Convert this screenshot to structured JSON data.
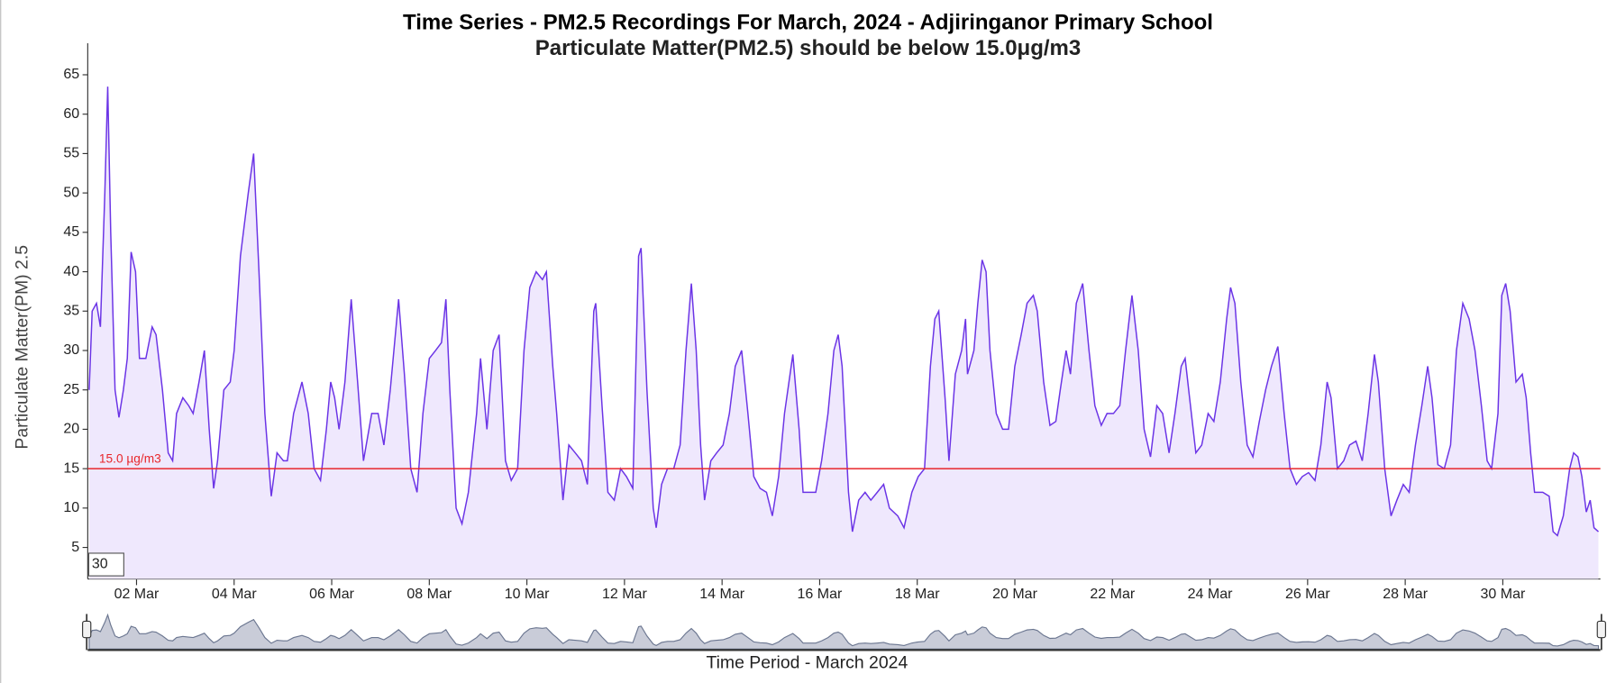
{
  "chart_data": {
    "type": "area",
    "title": "Time Series - PM2.5 Recordings For March, 2024 - Adjiringanor Primary School",
    "subtitle": "Particulate Matter(PM2.5) should be below 15.0μg/m3",
    "y_label": "Particulate Matter(PM) 2.5",
    "x_label": "Time Period - March 2024",
    "range_input": "30",
    "threshold": {
      "value": 15,
      "label": "15.0 µg/m3"
    },
    "threshold_color": "#e8262b",
    "xlim": [
      1,
      32
    ],
    "xticks": [
      {
        "value": 2,
        "label": "02 Mar"
      },
      {
        "value": 4,
        "label": "04 Mar"
      },
      {
        "value": 6,
        "label": "06 Mar"
      },
      {
        "value": 8,
        "label": "08 Mar"
      },
      {
        "value": 10,
        "label": "10 Mar"
      },
      {
        "value": 12,
        "label": "12 Mar"
      },
      {
        "value": 14,
        "label": "14 Mar"
      },
      {
        "value": 16,
        "label": "16 Mar"
      },
      {
        "value": 18,
        "label": "18 Mar"
      },
      {
        "value": 20,
        "label": "20 Mar"
      },
      {
        "value": 22,
        "label": "22 Mar"
      },
      {
        "value": 24,
        "label": "24 Mar"
      },
      {
        "value": 26,
        "label": "26 Mar"
      },
      {
        "value": 28,
        "label": "28 Mar"
      },
      {
        "value": 30,
        "label": "30 Mar"
      }
    ],
    "ylim": [
      1,
      69
    ],
    "yticks": [
      5,
      10,
      15,
      20,
      25,
      30,
      35,
      40,
      45,
      50,
      55,
      60,
      65
    ],
    "grid": false,
    "series": [
      {
        "name": "PM2.5",
        "color": "#6b34e6",
        "fill": "#efe8fd",
        "x": [
          1.03,
          1.09,
          1.18,
          1.26,
          1.35,
          1.41,
          1.47,
          1.56,
          1.64,
          1.73,
          1.81,
          1.89,
          1.98,
          2.06,
          2.19,
          2.32,
          2.4,
          2.53,
          2.65,
          2.74,
          2.82,
          2.95,
          3.07,
          3.16,
          3.28,
          3.39,
          3.49,
          3.58,
          3.66,
          3.79,
          3.92,
          4.0,
          4.13,
          4.29,
          4.4,
          4.51,
          4.63,
          4.76,
          4.88,
          5.01,
          5.09,
          5.22,
          5.39,
          5.52,
          5.64,
          5.77,
          5.89,
          5.98,
          6.06,
          6.15,
          6.27,
          6.4,
          6.53,
          6.65,
          6.82,
          6.95,
          7.07,
          7.2,
          7.37,
          7.49,
          7.62,
          7.75,
          7.87,
          8.0,
          8.13,
          8.25,
          8.34,
          8.42,
          8.55,
          8.67,
          8.8,
          8.97,
          9.05,
          9.18,
          9.31,
          9.43,
          9.56,
          9.68,
          9.81,
          9.94,
          10.06,
          10.19,
          10.32,
          10.4,
          10.53,
          10.61,
          10.74,
          10.86,
          10.99,
          11.12,
          11.24,
          11.37,
          11.41,
          11.54,
          11.66,
          11.79,
          11.92,
          12.04,
          12.17,
          12.29,
          12.34,
          12.46,
          12.59,
          12.65,
          12.76,
          12.88,
          13.01,
          13.14,
          13.26,
          13.37,
          13.47,
          13.56,
          13.64,
          13.77,
          13.89,
          14.02,
          14.15,
          14.27,
          14.4,
          14.53,
          14.65,
          14.78,
          14.91,
          15.03,
          15.16,
          15.28,
          15.45,
          15.58,
          15.66,
          15.79,
          15.92,
          16.04,
          16.17,
          16.29,
          16.38,
          16.46,
          16.59,
          16.67,
          16.8,
          16.93,
          17.05,
          17.18,
          17.31,
          17.43,
          17.6,
          17.73,
          17.89,
          18.02,
          18.15,
          18.27,
          18.36,
          18.44,
          18.57,
          18.65,
          18.78,
          18.91,
          18.99,
          19.03,
          19.16,
          19.24,
          19.33,
          19.41,
          19.49,
          19.62,
          19.75,
          19.87,
          20.0,
          20.13,
          20.25,
          20.38,
          20.46,
          20.59,
          20.72,
          20.84,
          20.93,
          21.05,
          21.14,
          21.26,
          21.39,
          21.52,
          21.64,
          21.77,
          21.89,
          22.02,
          22.15,
          22.27,
          22.4,
          22.53,
          22.65,
          22.78,
          22.91,
          23.03,
          23.16,
          23.28,
          23.41,
          23.49,
          23.58,
          23.71,
          23.83,
          23.96,
          24.08,
          24.21,
          24.34,
          24.42,
          24.51,
          24.63,
          24.76,
          24.88,
          25.01,
          25.14,
          25.26,
          25.39,
          25.52,
          25.64,
          25.77,
          25.89,
          26.02,
          26.15,
          26.27,
          26.4,
          26.48,
          26.61,
          26.74,
          26.86,
          26.99,
          27.12,
          27.24,
          27.37,
          27.45,
          27.58,
          27.71,
          27.83,
          27.96,
          28.08,
          28.21,
          28.34,
          28.46,
          28.55,
          28.67,
          28.8,
          28.93,
          29.05,
          29.18,
          29.31,
          29.43,
          29.56,
          29.68,
          29.77,
          29.9,
          29.98,
          30.06,
          30.15,
          30.27,
          30.4,
          30.48,
          30.57,
          30.65,
          30.82,
          30.95,
          31.03,
          31.12,
          31.24,
          31.37,
          31.45,
          31.54,
          31.62,
          31.71,
          31.79,
          31.87,
          31.96
        ],
        "values": [
          25,
          35,
          36,
          33,
          50,
          63.5,
          45,
          25,
          21.5,
          25,
          29,
          42.5,
          40,
          29,
          29,
          33,
          32,
          25,
          17,
          16,
          22,
          24,
          23,
          22,
          26,
          30,
          20,
          12.5,
          16,
          25,
          26,
          30,
          42,
          50,
          55,
          40,
          22,
          11.5,
          17,
          16,
          16,
          22,
          26,
          22,
          15,
          13.5,
          20,
          26,
          24,
          20,
          26,
          36.5,
          26,
          16,
          22,
          22,
          18,
          25,
          36.5,
          27,
          15,
          12,
          22,
          29,
          30,
          31,
          36.5,
          25,
          10,
          8,
          12,
          22,
          29,
          20,
          30,
          32,
          16,
          13.5,
          15,
          30,
          38,
          40,
          39,
          40,
          28,
          22,
          11,
          18,
          17,
          16,
          13,
          35,
          36,
          23,
          12,
          11,
          15,
          14,
          12.5,
          42,
          43,
          25,
          10,
          7.5,
          13,
          15,
          15,
          18,
          30,
          38.5,
          30,
          18,
          11,
          16,
          17,
          18,
          22,
          28,
          30,
          22,
          14,
          12.5,
          12,
          9,
          14,
          22,
          29.5,
          20,
          12,
          12,
          12,
          16,
          22,
          30,
          32,
          28,
          12,
          7,
          11,
          12,
          11,
          12,
          13,
          10,
          9,
          7.5,
          12,
          14,
          15,
          28,
          34,
          35,
          24,
          16,
          27,
          30,
          34,
          27,
          30,
          36,
          41.5,
          40,
          30,
          22,
          20,
          20,
          28,
          32,
          36,
          37,
          35,
          26,
          20.5,
          21,
          25,
          30,
          27,
          36,
          38.5,
          30,
          23,
          20.5,
          22,
          22,
          23,
          30,
          37,
          30,
          20,
          16.5,
          23,
          22,
          17,
          22,
          28,
          29,
          24,
          17,
          18,
          22,
          21,
          26,
          34,
          38,
          36,
          26,
          18,
          16.5,
          21,
          25,
          28,
          30.5,
          22,
          15,
          13,
          14,
          14.5,
          13.5,
          18,
          26,
          24,
          15,
          16,
          18,
          18.5,
          16,
          22,
          29.5,
          26,
          15,
          9,
          11,
          13,
          12,
          18,
          23,
          28,
          24,
          15.5,
          15,
          18,
          30,
          36,
          34,
          30,
          23,
          16,
          15,
          22,
          37,
          38.5,
          35,
          26,
          27,
          24,
          17,
          12,
          12,
          11.5,
          7,
          6.5,
          9,
          15,
          17,
          16.5,
          14,
          9.5,
          11,
          7.5,
          7
        ]
      }
    ]
  }
}
